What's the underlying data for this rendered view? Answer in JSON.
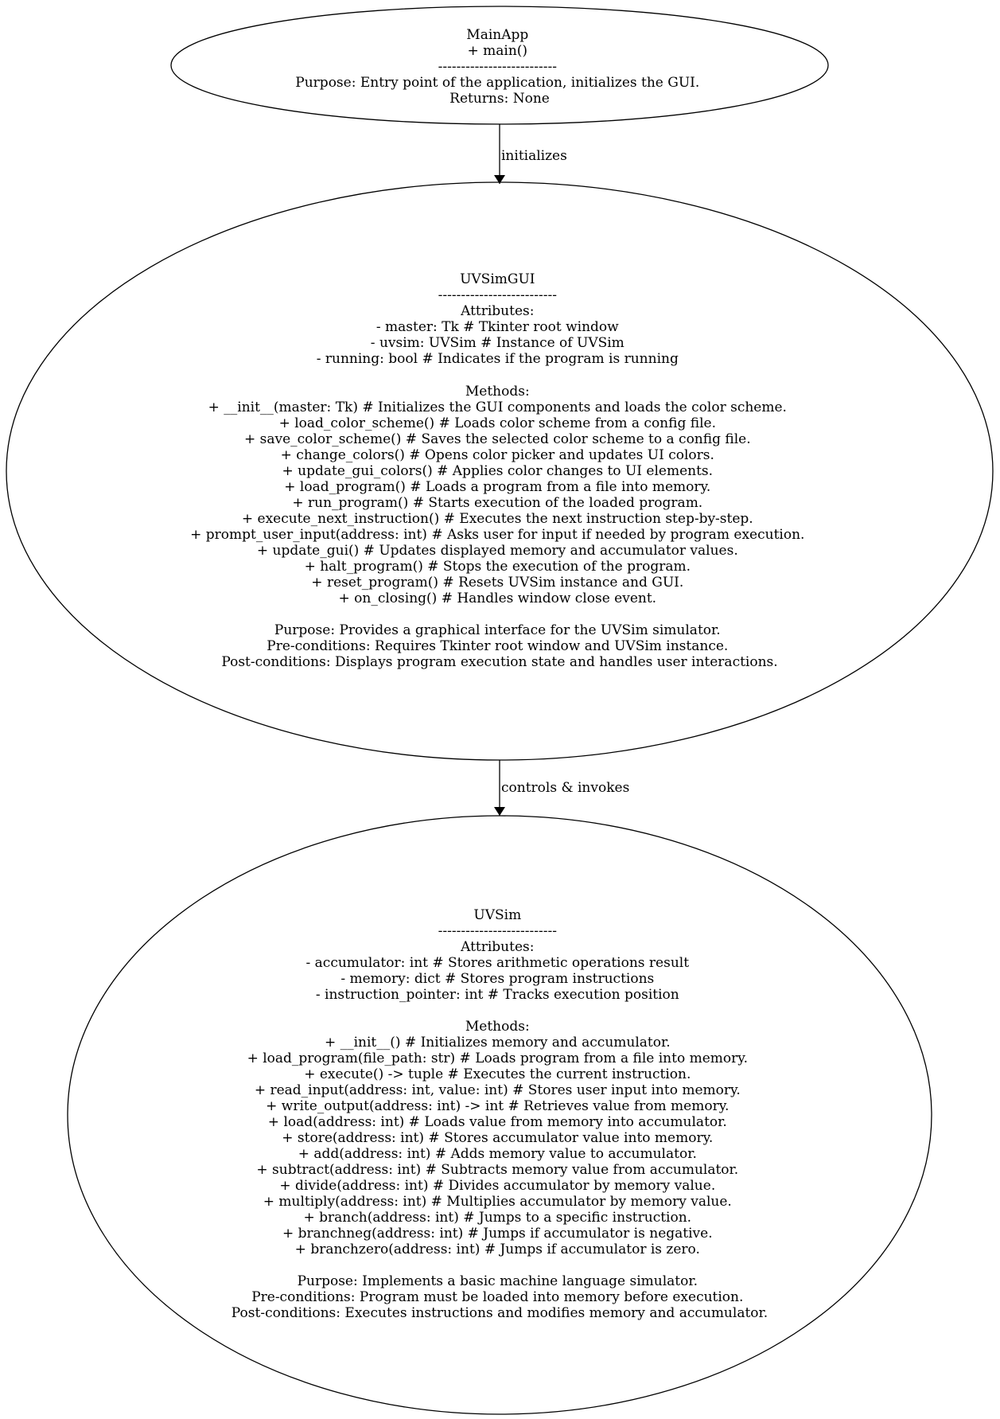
{
  "nodes": {
    "mainapp": {
      "lines": [
        "MainApp",
        "+ main()",
        "--------------------------",
        "Purpose: Entry point of the application, initializes the GUI.",
        "Returns: None"
      ]
    },
    "uvsimgui": {
      "lines": [
        "UVSimGUI",
        "--------------------------",
        "Attributes:",
        "- master: Tk  # Tkinter root window",
        "- uvsim: UVSim  # Instance of UVSim",
        "- running: bool  # Indicates if the program is running",
        "",
        "Methods:",
        "+ __init__(master: Tk)  # Initializes the GUI components and loads the color scheme.",
        "+ load_color_scheme()  # Loads color scheme from a config file.",
        "+ save_color_scheme()  # Saves the selected color scheme to a config file.",
        "+ change_colors()  # Opens color picker and updates UI colors.",
        "+ update_gui_colors()  # Applies color changes to UI elements.",
        "+ load_program()  # Loads a program from a file into memory.",
        "+ run_program()  # Starts execution of the loaded program.",
        "+ execute_next_instruction()  # Executes the next instruction step-by-step.",
        "+ prompt_user_input(address: int)  # Asks user for input if needed by program execution.",
        "+ update_gui()  # Updates displayed memory and accumulator values.",
        "+ halt_program()  # Stops the execution of the program.",
        "+ reset_program()  # Resets UVSim instance and GUI.",
        "+ on_closing()  # Handles window close event.",
        "",
        "Purpose: Provides a graphical interface for the UVSim simulator.",
        "Pre-conditions: Requires Tkinter root window and UVSim instance.",
        "Post-conditions: Displays program execution state and handles user interactions."
      ]
    },
    "uvsim": {
      "lines": [
        "UVSim",
        "--------------------------",
        "Attributes:",
        "- accumulator: int  # Stores arithmetic operations result",
        "- memory: dict  # Stores program instructions",
        "- instruction_pointer: int  # Tracks execution position",
        "",
        "Methods:",
        "+ __init__()  # Initializes memory and accumulator.",
        "+ load_program(file_path: str)  # Loads program from a file into memory.",
        "+ execute() -> tuple  # Executes the current instruction.",
        "+ read_input(address: int, value: int)  # Stores user input into memory.",
        "+ write_output(address: int) -> int  # Retrieves value from memory.",
        "+ load(address: int)  # Loads value from memory into accumulator.",
        "+ store(address: int)  # Stores accumulator value into memory.",
        "+ add(address: int)  # Adds memory value to accumulator.",
        "+ subtract(address: int)  # Subtracts memory value from accumulator.",
        "+ divide(address: int)  # Divides accumulator by memory value.",
        "+ multiply(address: int)  # Multiplies accumulator by memory value.",
        "+ branch(address: int)  # Jumps to a specific instruction.",
        "+ branchneg(address: int)  # Jumps if accumulator is negative.",
        "+ branchzero(address: int)  # Jumps if accumulator is zero.",
        "",
        "Purpose: Implements a basic machine language simulator.",
        "Pre-conditions: Program must be loaded into memory before execution.",
        "Post-conditions: Executes instructions and modifies memory and accumulator."
      ]
    }
  },
  "edges": {
    "mainapp_to_gui": {
      "label": "initializes"
    },
    "gui_to_uvsim": {
      "label": "controls & invokes"
    }
  }
}
